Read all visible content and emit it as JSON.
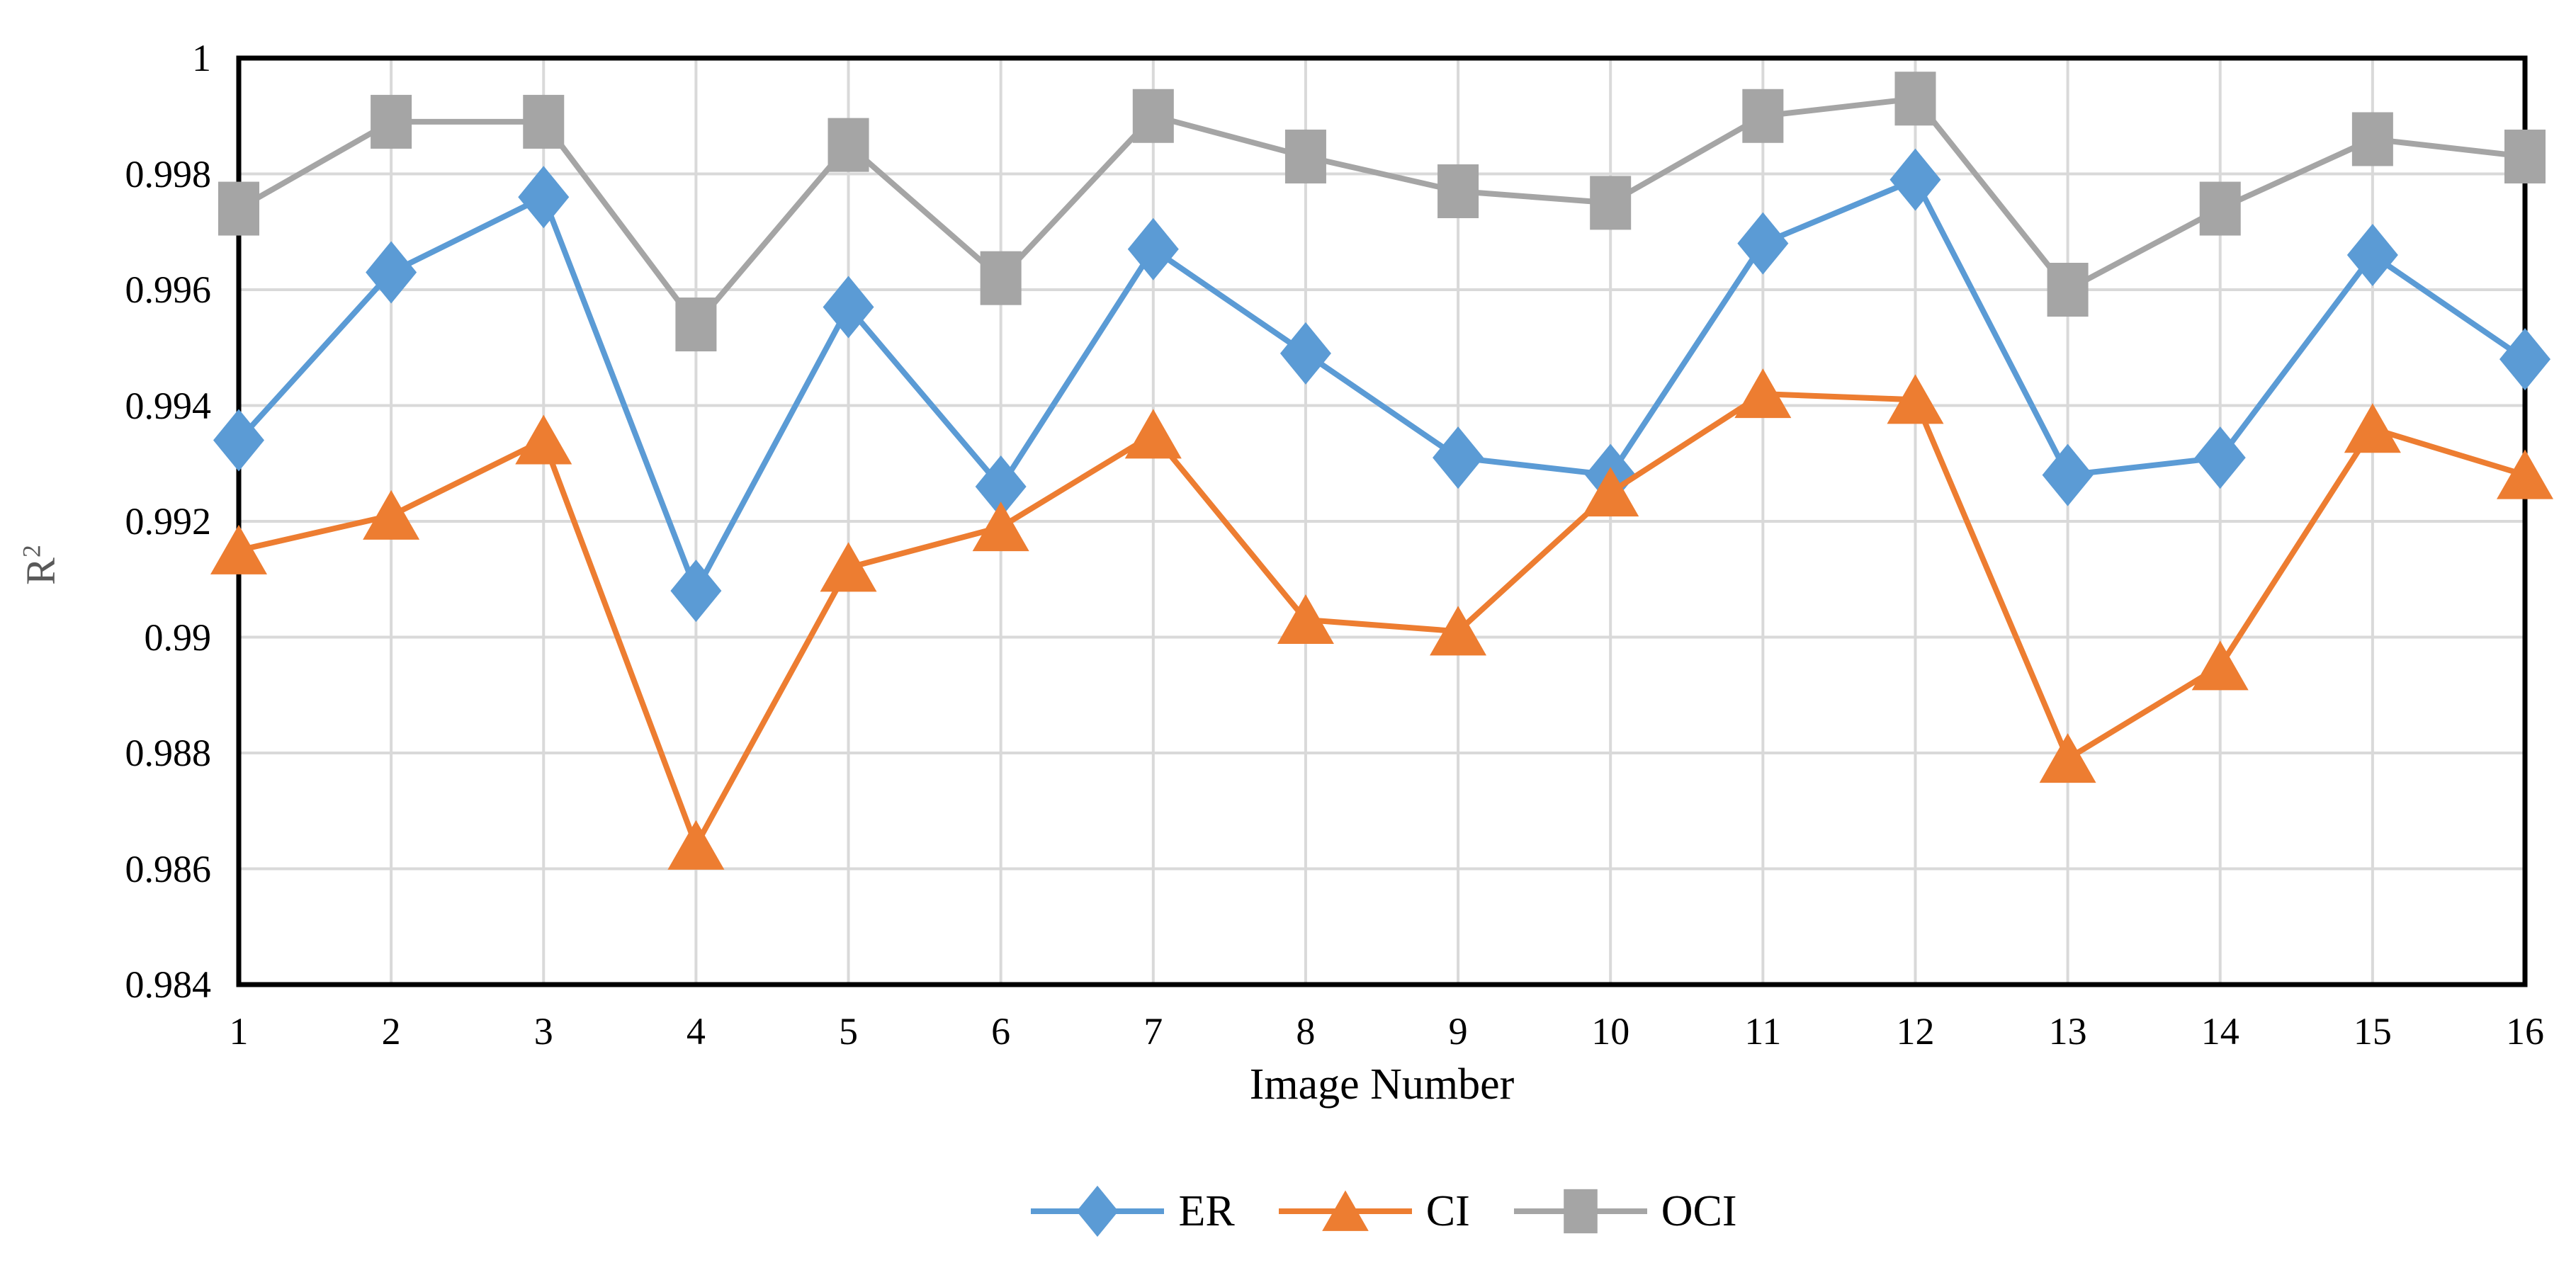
{
  "chart_data": {
    "type": "line",
    "title": "",
    "xlabel": "Image Number",
    "ylabel_base": "R",
    "ylabel_sup": "2",
    "x": [
      1,
      2,
      3,
      4,
      5,
      6,
      7,
      8,
      9,
      10,
      11,
      12,
      13,
      14,
      15,
      16
    ],
    "series": [
      {
        "name": "ER",
        "color": "#5B9BD5",
        "marker": "diamond",
        "values": [
          0.9934,
          0.9963,
          0.9976,
          0.9908,
          0.9957,
          0.9926,
          0.9967,
          0.9949,
          0.9931,
          0.9928,
          0.9968,
          0.9979,
          0.9928,
          0.9931,
          0.9966,
          0.9948
        ]
      },
      {
        "name": "CI",
        "color": "#ED7D31",
        "marker": "triangle",
        "values": [
          0.9915,
          0.9921,
          0.9934,
          0.9864,
          0.9912,
          0.9919,
          0.9935,
          0.9903,
          0.9901,
          0.9925,
          0.9942,
          0.9941,
          0.9879,
          0.9895,
          0.9936,
          0.9928
        ]
      },
      {
        "name": "OCI",
        "color": "#A5A5A5",
        "marker": "square",
        "values": [
          0.9974,
          0.9989,
          0.9989,
          0.9954,
          0.9985,
          0.9962,
          0.999,
          0.9983,
          0.9977,
          0.9975,
          0.999,
          0.9993,
          0.996,
          0.9974,
          0.9986,
          0.9983
        ]
      }
    ],
    "y_ticks": [
      {
        "value": 1,
        "label": "1"
      },
      {
        "value": 0.998,
        "label": "0.998"
      },
      {
        "value": 0.996,
        "label": "0.996"
      },
      {
        "value": 0.994,
        "label": "0.994"
      },
      {
        "value": 0.992,
        "label": "0.992"
      },
      {
        "value": 0.99,
        "label": "0.99"
      },
      {
        "value": 0.988,
        "label": "0.988"
      },
      {
        "value": 0.986,
        "label": "0.986"
      },
      {
        "value": 0.984,
        "label": "0.984"
      }
    ],
    "ylim": [
      0.984,
      1
    ],
    "grid": true,
    "legend_position": "bottom",
    "colors": {
      "grid": "#D9D9D9",
      "frame": "#000000",
      "tick_text": "#000000",
      "axis_title": "#000000",
      "ylabel_text": "#595959",
      "background": "#FFFFFF"
    }
  }
}
